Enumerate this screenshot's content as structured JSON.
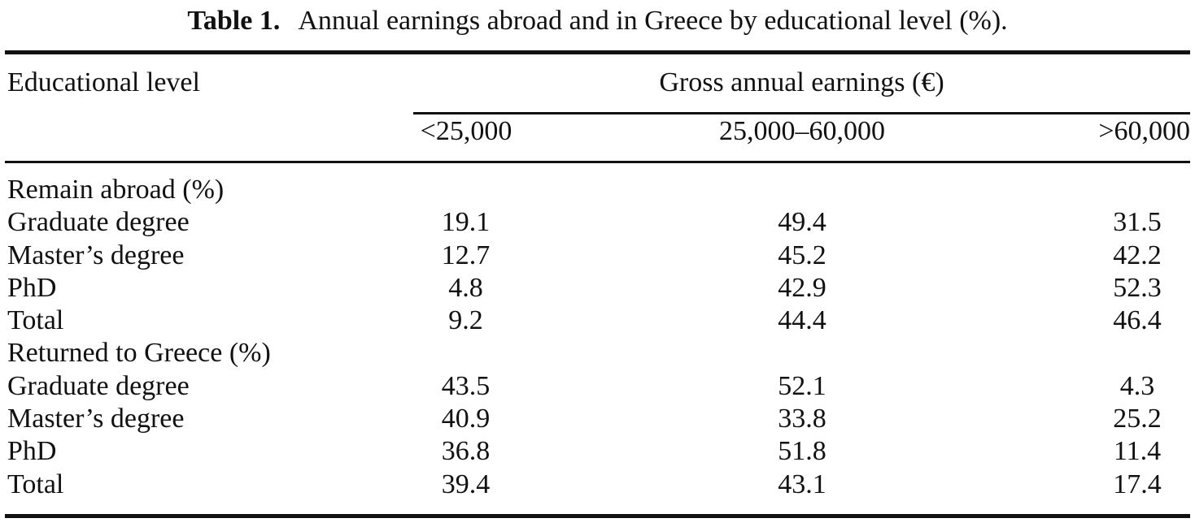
{
  "caption": {
    "label": "Table 1.",
    "text": "Annual earnings abroad and in Greece by educational level (%)."
  },
  "header": {
    "stub": "Educational level",
    "spanner": "Gross annual earnings (€)",
    "columns": [
      "<25,000",
      "25,000–60,000",
      ">60,000"
    ]
  },
  "groups": [
    {
      "title": "Remain abroad (%)",
      "rows": [
        {
          "label": "Graduate degree",
          "values": [
            "19.1",
            "49.4",
            "31.5"
          ]
        },
        {
          "label": "Master’s degree",
          "values": [
            "12.7",
            "45.2",
            "42.2"
          ]
        },
        {
          "label": "PhD",
          "values": [
            "4.8",
            "42.9",
            "52.3"
          ]
        },
        {
          "label": "Total",
          "values": [
            "9.2",
            "44.4",
            "46.4"
          ]
        }
      ]
    },
    {
      "title": "Returned to Greece (%)",
      "rows": [
        {
          "label": "Graduate degree",
          "values": [
            "43.5",
            "52.1",
            "4.3"
          ]
        },
        {
          "label": "Master’s degree",
          "values": [
            "40.9",
            "33.8",
            "25.2"
          ]
        },
        {
          "label": "PhD",
          "values": [
            "36.8",
            "51.8",
            "11.4"
          ]
        },
        {
          "label": "Total",
          "values": [
            "39.4",
            "43.1",
            "17.4"
          ]
        }
      ]
    }
  ]
}
